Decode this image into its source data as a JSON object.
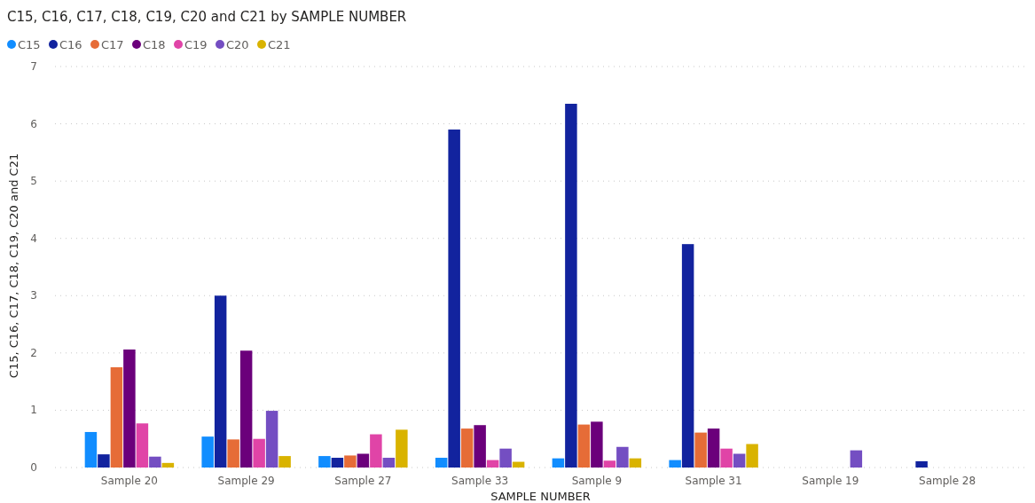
{
  "chart_data": {
    "type": "bar",
    "title": "C15, C16, C17, C18, C19, C20 and C21 by SAMPLE NUMBER",
    "xlabel": "SAMPLE NUMBER",
    "ylabel": "C15, C16, C17, C18, C19, C20 and C21",
    "categories": [
      "Sample 20",
      "Sample 29",
      "Sample 27",
      "Sample 33",
      "Sample 9",
      "Sample 31",
      "Sample 19",
      "Sample 28"
    ],
    "series": [
      {
        "name": "C15",
        "color": "#118dff",
        "values": [
          0.62,
          0.54,
          0.2,
          0.17,
          0.16,
          0.13,
          null,
          null
        ]
      },
      {
        "name": "C16",
        "color": "#12239e",
        "values": [
          0.23,
          3.0,
          0.17,
          5.9,
          6.35,
          3.9,
          null,
          0.11
        ]
      },
      {
        "name": "C17",
        "color": "#e66c37",
        "values": [
          1.75,
          0.49,
          0.21,
          0.68,
          0.75,
          0.61,
          null,
          null
        ]
      },
      {
        "name": "C18",
        "color": "#6b007b",
        "values": [
          2.06,
          2.04,
          0.24,
          0.74,
          0.8,
          0.68,
          null,
          null
        ]
      },
      {
        "name": "C19",
        "color": "#e044a7",
        "values": [
          0.77,
          0.5,
          0.58,
          0.13,
          0.12,
          0.33,
          null,
          null
        ]
      },
      {
        "name": "C20",
        "color": "#744ec2",
        "values": [
          0.19,
          0.99,
          0.17,
          0.33,
          0.36,
          0.24,
          0.3,
          null
        ]
      },
      {
        "name": "C21",
        "color": "#d9b300",
        "values": [
          0.08,
          0.2,
          0.66,
          0.1,
          0.16,
          0.41,
          null,
          null
        ]
      }
    ],
    "ylim": [
      0,
      7
    ],
    "yticks": [
      0,
      1,
      2,
      3,
      4,
      5,
      6,
      7
    ],
    "grid": "y",
    "legend": "top left"
  }
}
